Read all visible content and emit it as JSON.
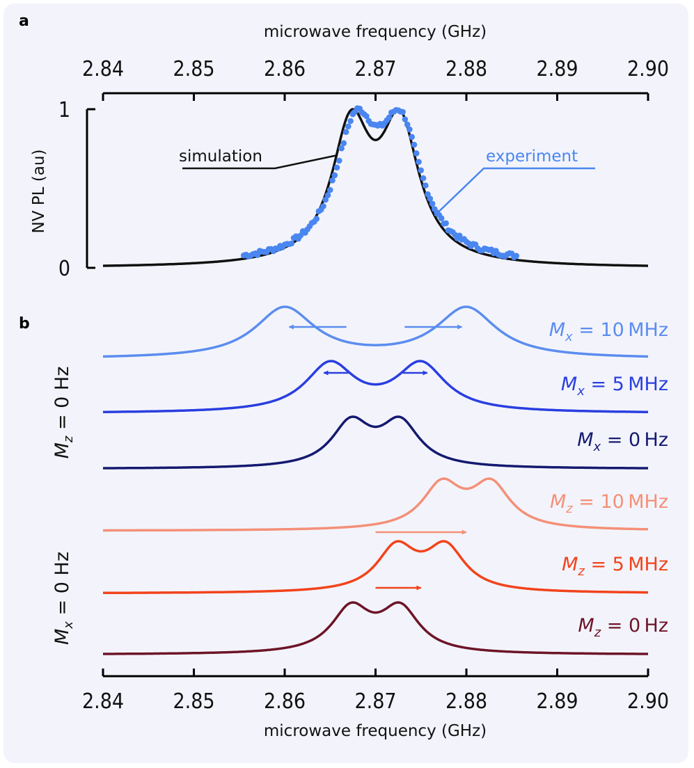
{
  "chart_data": [
    {
      "panel": "a",
      "type": "line",
      "title": "",
      "xlabel": "microwave frequency (GHz)",
      "ylabel": "NV PL (au)",
      "xlim": [
        2.84,
        2.9
      ],
      "ylim": [
        0,
        1
      ],
      "x_ticks": [
        "2.84",
        "2.85",
        "2.86",
        "2.87",
        "2.88",
        "2.89",
        "2.90"
      ],
      "y_ticks": [
        "0",
        "1"
      ],
      "grid": false,
      "series": [
        {
          "name": "simulation",
          "style": "line",
          "color": "#111111",
          "peaks": [
            2.8673,
            2.8727
          ],
          "width": 0.0026,
          "baseline": 0.0
        },
        {
          "name": "experiment",
          "style": "scatter",
          "color": "#4a86f0",
          "x_range": [
            2.8555,
            2.8855
          ],
          "peaks": [
            2.8678,
            2.8728
          ],
          "width": 0.0028,
          "baseline": 0.02
        }
      ],
      "annotations": [
        {
          "text": "simulation",
          "color": "#111111",
          "target_x": 2.8657
        },
        {
          "text": "experiment",
          "color": "#4a86f0",
          "target_x": 2.8765
        }
      ]
    },
    {
      "panel": "b",
      "type": "line",
      "xlabel": "microwave frequency (GHz)",
      "xlim": [
        2.84,
        2.9
      ],
      "x_ticks": [
        "2.84",
        "2.85",
        "2.86",
        "2.87",
        "2.88",
        "2.89",
        "2.90"
      ],
      "group_labels": [
        "M_z = 0 Hz",
        "M_x = 0 Hz"
      ],
      "series": [
        {
          "name": "M_x = 10 MHz",
          "var": "M",
          "sub": "x",
          "value": "10",
          "unit": "MHz",
          "color": "#5b8def",
          "peaks": [
            2.86,
            2.88
          ],
          "width": 0.004
        },
        {
          "name": "M_x = 5 MHz",
          "var": "M",
          "sub": "x",
          "value": "5",
          "unit": "MHz",
          "color": "#2a3ee0",
          "peaks": [
            2.865,
            2.875
          ],
          "width": 0.0033
        },
        {
          "name": "M_x = 0 Hz",
          "var": "M",
          "sub": "x",
          "value": "0",
          "unit": "Hz",
          "color": "#141a70",
          "peaks": [
            2.8673,
            2.8727
          ],
          "width": 0.0026
        },
        {
          "name": "M_z = 10 MHz",
          "var": "M",
          "sub": "z",
          "value": "10",
          "unit": "MHz",
          "color": "#f49078",
          "peaks": [
            2.8773,
            2.8827
          ],
          "width": 0.0026
        },
        {
          "name": "M_z = 5 MHz",
          "var": "M",
          "sub": "z",
          "value": "5",
          "unit": "MHz",
          "color": "#f2431c",
          "peaks": [
            2.8723,
            2.8777
          ],
          "width": 0.0026
        },
        {
          "name": "M_z = 0 Hz",
          "var": "M",
          "sub": "z",
          "value": "0",
          "unit": "Hz",
          "color": "#6e1428",
          "peaks": [
            2.8673,
            2.8727
          ],
          "width": 0.0026
        }
      ],
      "arrows": [
        {
          "series": "M_x = 10 MHz",
          "from": 2.8668,
          "to": 2.8605
        },
        {
          "series": "M_x = 10 MHz",
          "from": 2.8732,
          "to": 2.8795
        },
        {
          "series": "M_x = 5 MHz",
          "from": 2.867,
          "to": 2.8643
        },
        {
          "series": "M_x = 5 MHz",
          "from": 2.873,
          "to": 2.8757
        },
        {
          "series": "M_z = 10 MHz",
          "from": 2.87,
          "to": 2.88
        },
        {
          "series": "M_z = 5 MHz",
          "from": 2.87,
          "to": 2.875
        }
      ]
    }
  ],
  "labels": {
    "panel_a": "a",
    "panel_b": "b",
    "side_top": {
      "var": "M",
      "sub": "z",
      "rest": " = 0 Hz"
    },
    "side_bottom": {
      "var": "M",
      "sub": "x",
      "rest": " = 0 Hz"
    }
  }
}
